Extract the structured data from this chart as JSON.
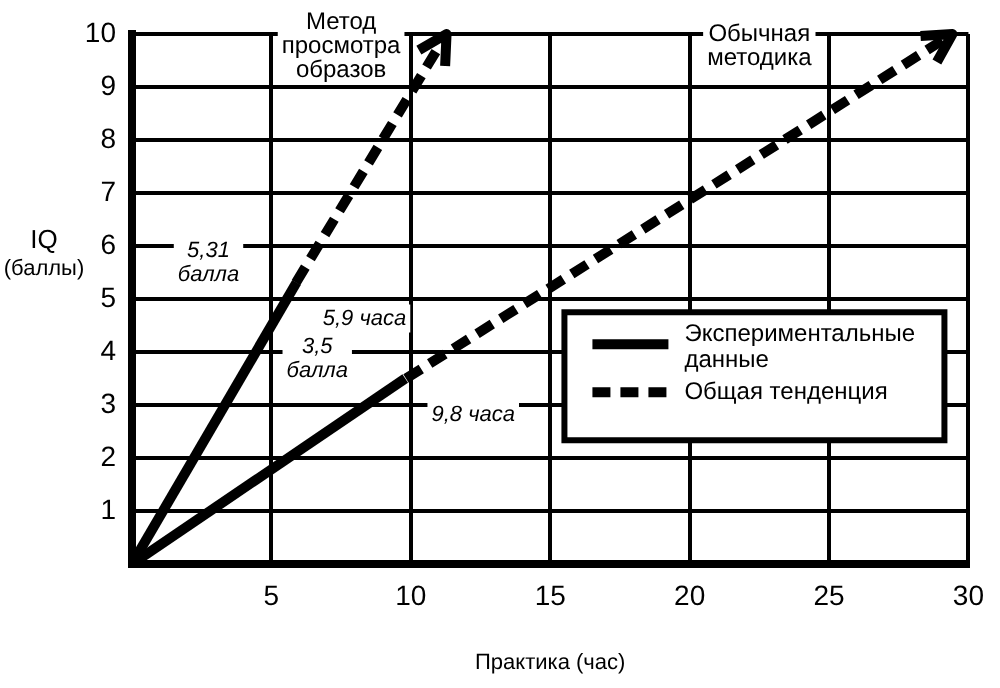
{
  "chart_data": {
    "type": "line",
    "xlabel": "Практика (час)",
    "ylabel": "IQ (баллы)",
    "series": [
      {
        "name": "Экспериментальные данные",
        "color": "#000000",
        "line_style": "solid",
        "x": [
          0,
          5.9
        ],
        "values": [
          0,
          5.31
        ]
      },
      {
        "color": "#000000",
        "line_style": "solid",
        "x": [
          0,
          9.8
        ],
        "values": [
          0,
          3.5
        ]
      },
      {
        "name": "Общая тенденция",
        "color": "#000000",
        "line_style": "dashed",
        "x": [
          5.9,
          11.3
        ],
        "values": [
          5.31,
          10
        ]
      },
      {
        "color": "#000000",
        "line_style": "dashed",
        "x": [
          9.8,
          29.4
        ],
        "values": [
          3.5,
          10
        ]
      }
    ],
    "xlim": [
      0,
      30
    ],
    "xticks": [
      {
        "value": 0,
        "label": null
      },
      5,
      10,
      15,
      20,
      25,
      30
    ],
    "ylim": [
      0,
      10
    ],
    "yticks": [
      {
        "value": 0,
        "label": null
      },
      1,
      2,
      3,
      4,
      5,
      6,
      7,
      8,
      9,
      10
    ],
    "grid": true,
    "legend": "right",
    "marker": "none",
    "annotations": [
      "Метод просмотра образов",
      "Обычная методика",
      "5,31 балла",
      "5,9 часа",
      "3,5 балла",
      "9,8 часа"
    ]
  }
}
